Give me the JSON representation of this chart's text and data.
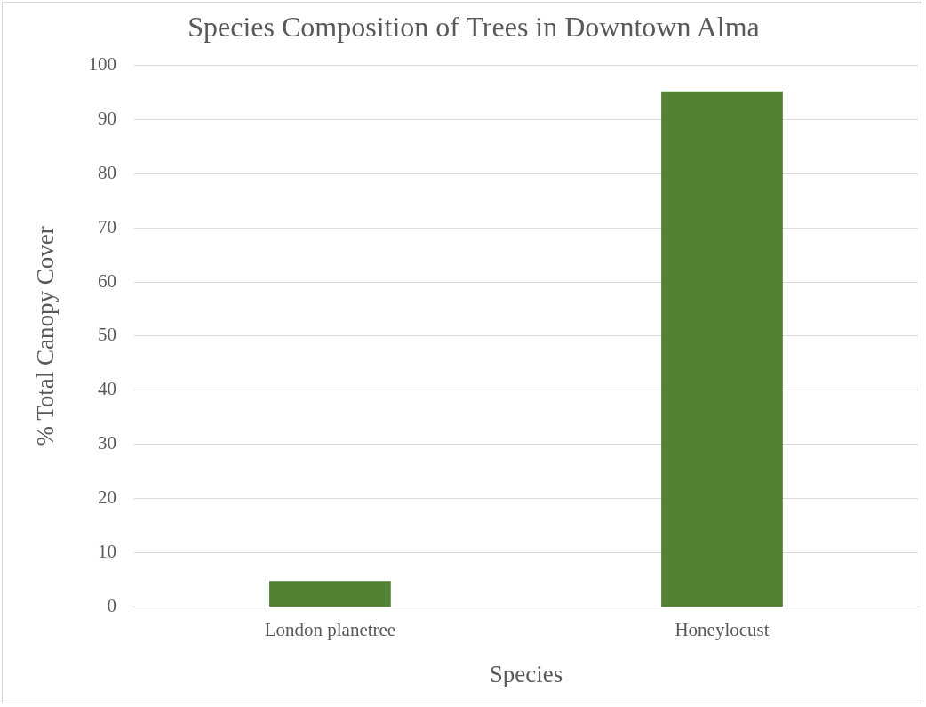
{
  "chart_data": {
    "type": "bar",
    "title": "Species Composition of Trees in Downtown Alma",
    "xlabel": "Species",
    "ylabel": "% Total Canopy Cover",
    "categories": [
      "London planetree",
      "Honeylocust"
    ],
    "series": [
      {
        "color": "#548235",
        "values": [
          4.8,
          95.2
        ]
      }
    ],
    "ylim": [
      0,
      100
    ],
    "yticks": [
      0,
      10,
      20,
      30,
      40,
      50,
      60,
      70,
      80,
      90,
      100
    ],
    "grid": "y",
    "legend": false
  }
}
